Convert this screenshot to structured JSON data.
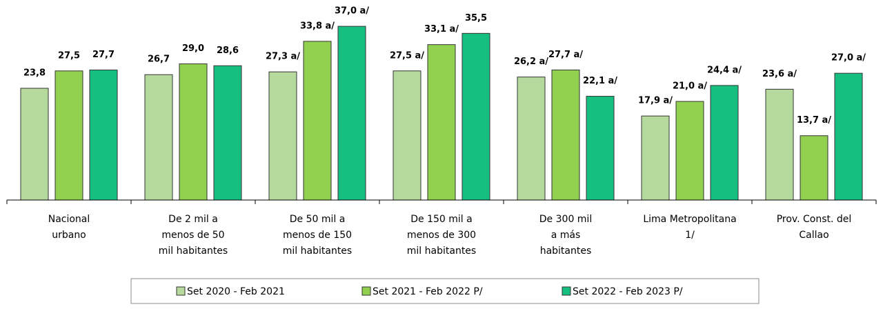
{
  "chart_data": {
    "type": "bar",
    "categories": [
      [
        "Nacional",
        "urbano"
      ],
      [
        "De 2 mil a",
        "menos de 50",
        "mil habitantes"
      ],
      [
        "De 50 mil a",
        "menos de 150",
        "mil habitantes"
      ],
      [
        "De 150 mil a",
        "menos de 300",
        "mil habitantes"
      ],
      [
        "De 300 mil",
        "a  más",
        "habitantes"
      ],
      [
        "Lima Metropolitana",
        "1/"
      ],
      [
        "Prov. Const. del",
        "Callao"
      ]
    ],
    "series": [
      {
        "name": "Set 2020 - Feb 2021",
        "color": "#b6d99e",
        "values": [
          23.8,
          26.7,
          27.3,
          27.5,
          26.2,
          17.9,
          23.6
        ],
        "value_labels": [
          "23,8",
          "26,7",
          "27,3 a/",
          "27,5 a/",
          "26,2 a/",
          "17,9 a/",
          "23,6 a/"
        ]
      },
      {
        "name": "Set 2021 - Feb 2022 P/",
        "color": "#92d050",
        "values": [
          27.5,
          29.0,
          33.8,
          33.1,
          27.7,
          21.0,
          13.7
        ],
        "value_labels": [
          "27,5",
          "29,0",
          "33,8 a/",
          "33,1 a/",
          "27,7 a/",
          "21,0 a/",
          "13,7 a/"
        ]
      },
      {
        "name": "Set 2022 - Feb 2023 P/",
        "color": "#16bf80",
        "values": [
          27.7,
          28.6,
          37.0,
          35.5,
          22.1,
          24.4,
          27.0
        ],
        "value_labels": [
          "27,7",
          "28,6",
          "37,0 a/",
          "35,5",
          "22,1 a/",
          "24,4 a/",
          "27,0 a/"
        ]
      }
    ],
    "ylim": [
      0,
      42.6
    ],
    "legend": "bottom"
  }
}
